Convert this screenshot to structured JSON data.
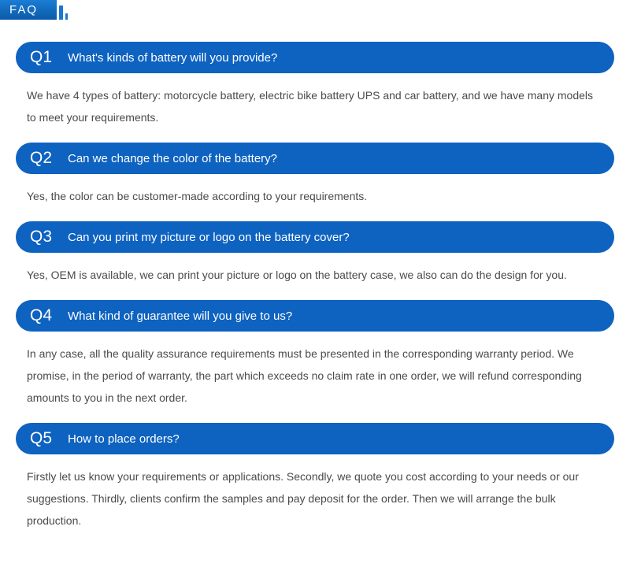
{
  "header": {
    "title": "FAQ"
  },
  "colors": {
    "question_bar_bg": "#0e62c0",
    "question_text": "#ffffff",
    "answer_text": "#4a4a4a",
    "header_gradient_start": "#1a7dd4",
    "header_gradient_end": "#0a5aa8",
    "accent_bar": "#1976d2",
    "page_bg": "#ffffff"
  },
  "typography": {
    "q_label_fontsize": 21,
    "q_text_fontsize": 15,
    "answer_fontsize": 14,
    "header_fontsize": 15
  },
  "faq": {
    "items": [
      {
        "label": "Q1",
        "question": "What's kinds of battery will you provide?",
        "answer": "We have 4 types of battery: motorcycle battery, electric bike battery UPS and car battery, and we have many models to meet your requirements."
      },
      {
        "label": "Q2",
        "question": "Can we change the color of the battery?",
        "answer": "Yes, the color can be customer-made according to your requirements."
      },
      {
        "label": "Q3",
        "question": "Can you print my picture or logo on the battery cover?",
        "answer": "Yes, OEM is available, we can print your picture or logo on the battery case, we also can do the design for you."
      },
      {
        "label": "Q4",
        "question": "What kind of guarantee will you give to us?",
        "answer": "In any case, all the quality assurance requirements must be presented in the corresponding warranty period. We promise, in the period of warranty, the part which exceeds no claim rate in one order, we will refund corresponding amounts to you in the next order."
      },
      {
        "label": "Q5",
        "question": "How to place orders?",
        "answer": "Firstly let us know your requirements or applications. Secondly, we quote you cost according to your needs or our suggestions. Thirdly, clients confirm the samples and pay deposit for the order. Then we will arrange the bulk production."
      }
    ]
  }
}
